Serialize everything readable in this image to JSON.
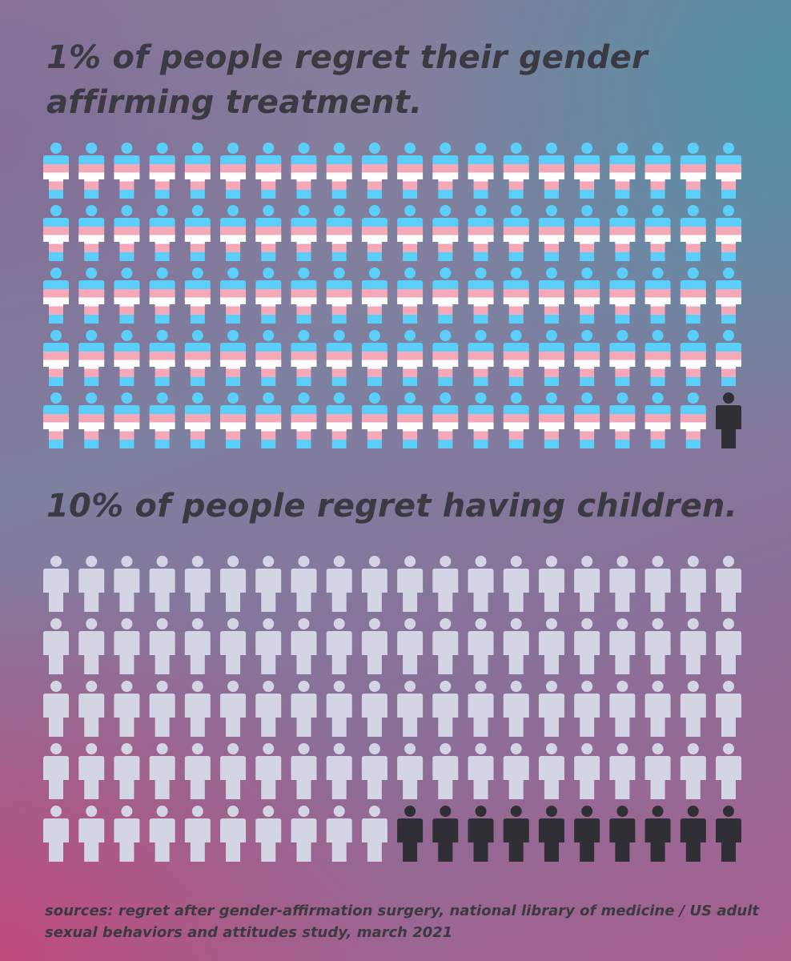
{
  "chart_data": [
    {
      "type": "pictogram",
      "title": "1% of people regret their gender affirming treatment.",
      "total": 100,
      "highlighted": 1,
      "rows": 5,
      "columns": 20,
      "colors": {
        "base_stripes": [
          "#5bcefa",
          "#f5a9b8",
          "#ffffff",
          "#f5a9b8",
          "#5bcefa"
        ],
        "highlight": "#2f2f35"
      }
    },
    {
      "type": "pictogram",
      "title": "10% of people regret having children.",
      "total": 100,
      "highlighted": 10,
      "rows": 5,
      "columns": 20,
      "colors": {
        "base": "#d3d4e4",
        "highlight": "#2f2f35"
      }
    }
  ],
  "sources": "sources: regret after gender-affirmation surgery, national library of medicine / US adult sexual behaviors and attitudes study, march 2021"
}
